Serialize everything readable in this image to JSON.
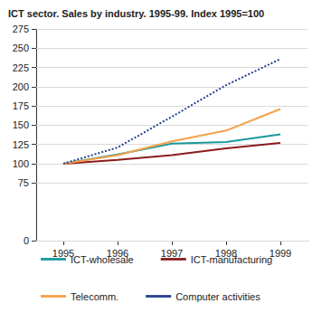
{
  "chart_data": {
    "type": "line",
    "title": "ICT sector. Sales by industry. 1995-99. Index 1995=100",
    "categories": [
      "1995",
      "1996",
      "1997",
      "1998",
      "1999"
    ],
    "series": [
      {
        "name": "ICT-wholesale",
        "color": "#1a9a9c",
        "line_style": "solid",
        "values": [
          100,
          112,
          126,
          128,
          138
        ]
      },
      {
        "name": "ICT-manufacturing",
        "color": "#8b1c1c",
        "line_style": "solid",
        "values": [
          100,
          105,
          111,
          120,
          127
        ]
      },
      {
        "name": "Telecomm.",
        "color": "#f5a04a",
        "line_style": "solid",
        "values": [
          100,
          111,
          129,
          143,
          171
        ]
      },
      {
        "name": "Computer activities",
        "color": "#23408e",
        "line_style": "dotted",
        "values": [
          100,
          121,
          161,
          202,
          236
        ]
      }
    ],
    "ylim": [
      0,
      275
    ],
    "yticks": [
      0,
      75,
      100,
      125,
      150,
      175,
      200,
      225,
      250,
      275
    ],
    "grid": true,
    "legend": "bottom"
  }
}
